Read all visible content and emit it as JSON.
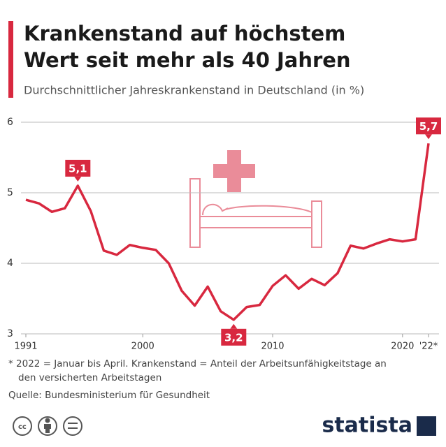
{
  "chart_data": {
    "type": "line",
    "title": [
      "Krankenstand auf höchstem",
      "Wert seit mehr als 40 Jahren"
    ],
    "subtitle": "Durchschnittlicher Jahreskrankenstand in Deutschland (in %)",
    "x": [
      1991,
      1992,
      1993,
      1994,
      1995,
      1996,
      1997,
      1998,
      1999,
      2000,
      2001,
      2002,
      2003,
      2004,
      2005,
      2006,
      2007,
      2008,
      2009,
      2010,
      2011,
      2012,
      2013,
      2014,
      2015,
      2016,
      2017,
      2018,
      2019,
      2020,
      2021,
      2022
    ],
    "series": [
      {
        "color": "#d8283f",
        "values": [
          4.9,
          4.85,
          4.73,
          4.78,
          5.1,
          4.74,
          4.18,
          4.12,
          4.26,
          4.22,
          4.19,
          4.0,
          3.61,
          3.4,
          3.67,
          3.32,
          3.2,
          3.38,
          3.41,
          3.68,
          3.83,
          3.64,
          3.78,
          3.69,
          3.86,
          4.25,
          4.21,
          4.28,
          4.34,
          4.31,
          4.34,
          5.7
        ],
        "value_labels": [
          null,
          null,
          null,
          null,
          "5,1",
          null,
          null,
          null,
          null,
          null,
          null,
          null,
          null,
          null,
          null,
          null,
          "3,2",
          null,
          null,
          null,
          null,
          null,
          null,
          null,
          null,
          null,
          null,
          null,
          null,
          null,
          null,
          "5,7"
        ]
      }
    ],
    "xlim": [
      1991,
      2022
    ],
    "xticks": [
      1991,
      2000,
      2010,
      2020,
      {
        "value": 2022,
        "label": "'22*"
      }
    ],
    "ylim": [
      3,
      6
    ],
    "yticks": [
      3,
      4,
      5,
      6
    ],
    "grid": true,
    "footnote": [
      "* 2022 = Januar bis April. Krankenstand = Anteil der Arbeitsunfähigkeitstage an",
      "den versicherten Arbeitstagen"
    ],
    "source": "Quelle: Bundesministerium für Gesundheit",
    "brand": "statista"
  }
}
